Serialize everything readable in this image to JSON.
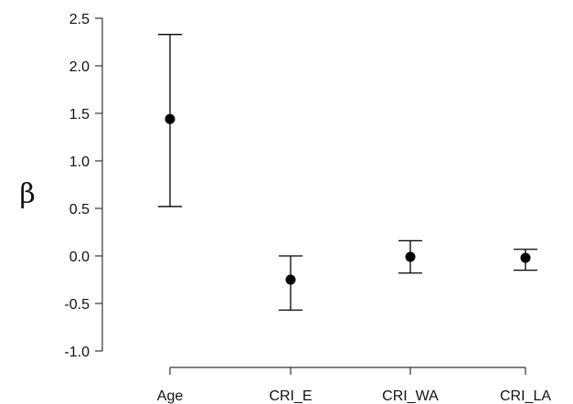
{
  "chart_data": {
    "type": "scatter",
    "title": "",
    "xlabel": "",
    "ylabel": "β",
    "categories": [
      "Age",
      "CRI_E",
      "CRI_WA",
      "CRI_LA"
    ],
    "estimate": [
      1.44,
      -0.25,
      -0.01,
      -0.02
    ],
    "ci_lower": [
      0.52,
      -0.57,
      -0.18,
      -0.15
    ],
    "ci_upper": [
      2.33,
      0.0,
      0.16,
      0.07
    ],
    "ylim": [
      -1.0,
      2.5
    ],
    "yticks": [
      "-1.0",
      "-0.5",
      "0.0",
      "0.5",
      "1.0",
      "1.5",
      "2.0",
      "2.5"
    ],
    "grid": false,
    "legend": "none",
    "colors": {
      "marker": "#000000",
      "axis": "#333333",
      "text": "#111111"
    }
  }
}
